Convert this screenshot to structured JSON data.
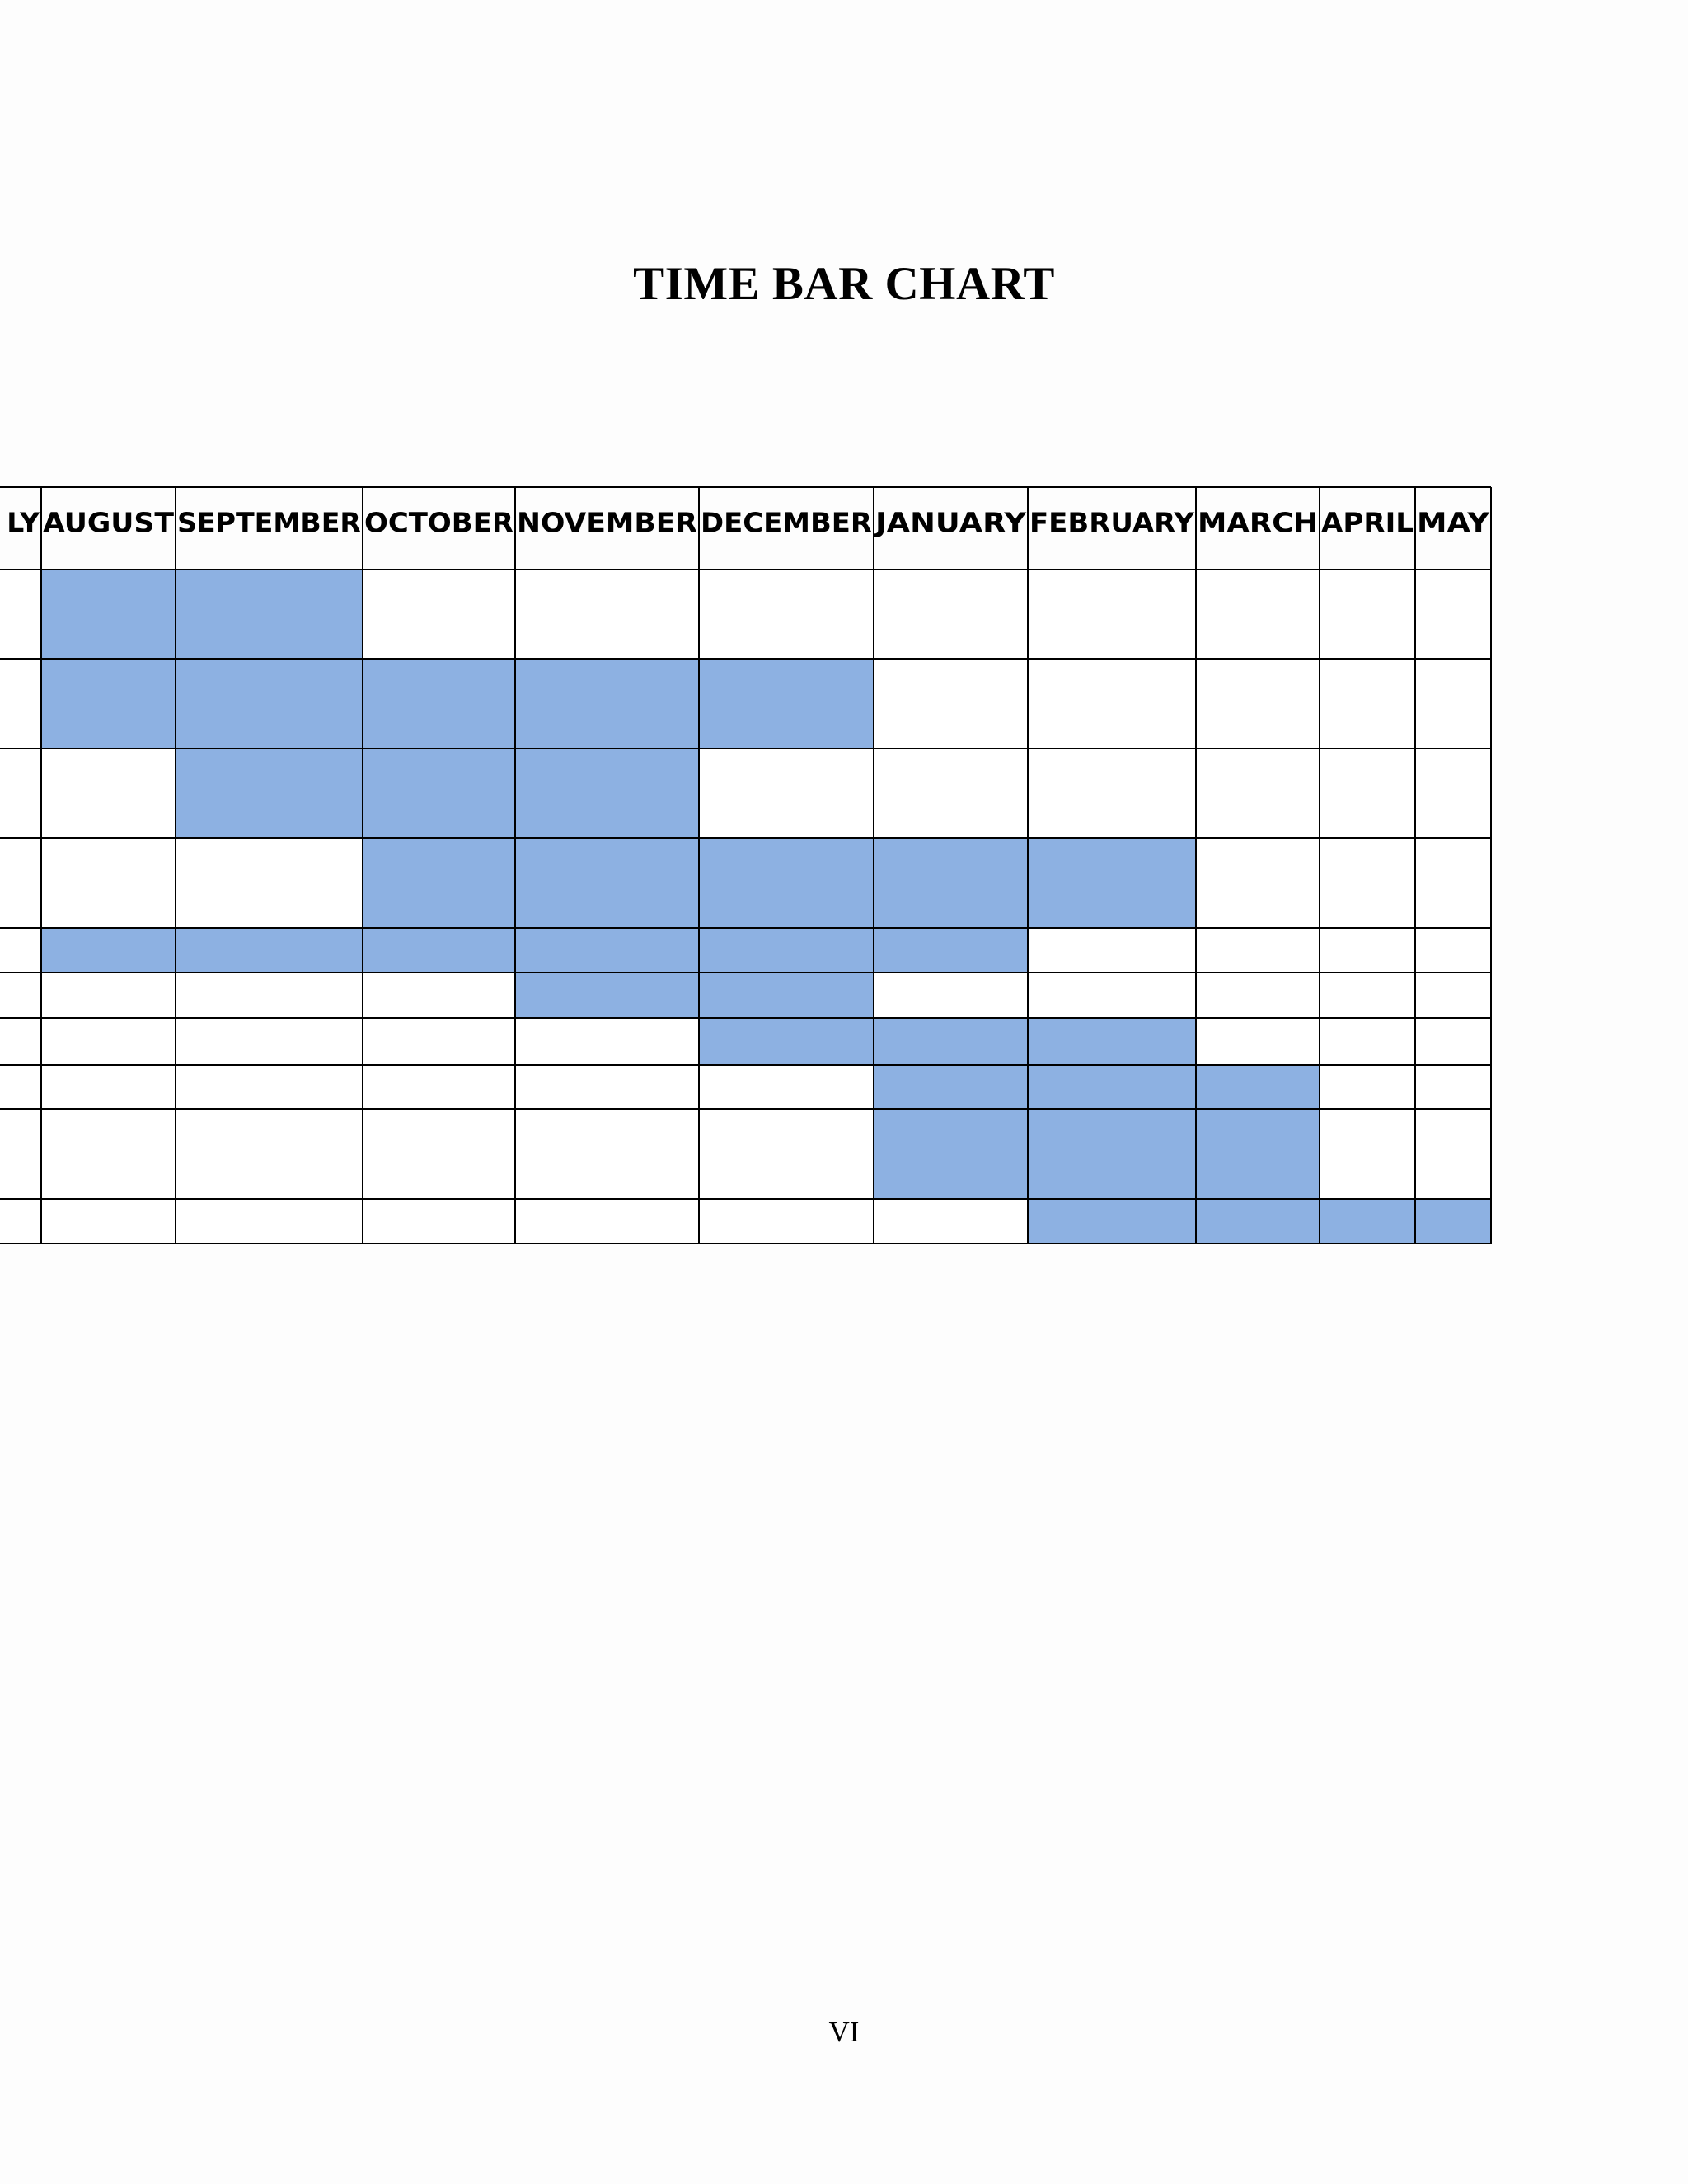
{
  "page": {
    "title": "TIME BAR CHART",
    "page_number": "VI"
  },
  "colors": {
    "bar": "#8db1e2",
    "grid": "#000000",
    "cell_empty": "#ffffff"
  },
  "chart_data": {
    "type": "table",
    "title": "TIME BAR CHART",
    "categories": [
      "JULY",
      "AUGUST",
      "SEPTEMBER",
      "OCTOBER",
      "NOVEMBER",
      "DECEMBER",
      "JANUARY",
      "FEBRUARY",
      "MARCH",
      "APRIL",
      "MAY"
    ],
    "visible_header_text": [
      "LY",
      "AUGUST",
      "SEPTEMBER",
      "OCTOBER",
      "NOVEMBER",
      "DECEMBER",
      "JANUARY",
      "FEBRUARY",
      "MARCH",
      "APRIL",
      "MAY"
    ],
    "rows": [
      {
        "filled": [
          "AUGUST",
          "SEPTEMBER"
        ]
      },
      {
        "filled": [
          "AUGUST",
          "SEPTEMBER",
          "OCTOBER",
          "NOVEMBER",
          "DECEMBER"
        ]
      },
      {
        "filled": [
          "SEPTEMBER",
          "OCTOBER",
          "NOVEMBER"
        ]
      },
      {
        "filled": [
          "OCTOBER",
          "NOVEMBER",
          "DECEMBER",
          "JANUARY",
          "FEBRUARY"
        ]
      },
      {
        "filled": [
          "AUGUST",
          "SEPTEMBER",
          "OCTOBER",
          "NOVEMBER",
          "DECEMBER",
          "JANUARY"
        ]
      },
      {
        "filled": [
          "NOVEMBER",
          "DECEMBER"
        ]
      },
      {
        "filled": [
          "DECEMBER",
          "JANUARY",
          "FEBRUARY"
        ]
      },
      {
        "filled": [
          "JANUARY",
          "FEBRUARY",
          "MARCH"
        ]
      },
      {
        "filled": [
          "JANUARY",
          "FEBRUARY",
          "MARCH"
        ]
      },
      {
        "filled": [
          "FEBRUARY",
          "MARCH",
          "APRIL",
          "MAY"
        ]
      }
    ]
  }
}
